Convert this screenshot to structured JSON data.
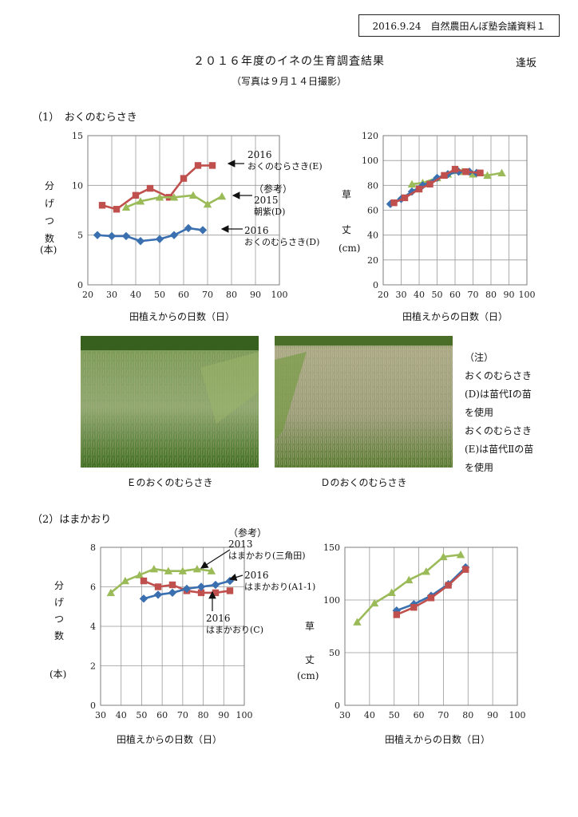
{
  "header": {
    "doc_label": "2016.9.24　自然農田んぼ塾会議資料１"
  },
  "title": "２０１６年度のイネの生育調査結果",
  "author": "逢坂",
  "subtitle": "（写真は９月１４日撮影）",
  "section1": {
    "heading": "（1）　おくのむらさき"
  },
  "section2": {
    "heading": "（2）はまかおり"
  },
  "labels": {
    "tillers_v": [
      "分",
      "げ",
      "つ",
      "数"
    ],
    "tillers_unit": "(本)",
    "height_v": [
      "草",
      "丈"
    ],
    "height_unit": "(cm)",
    "xlabel": "田植えからの日数（日）"
  },
  "colors": {
    "blue": "#3a6fb0",
    "red": "#c0504d",
    "green": "#9bbb59",
    "grid": "#999999"
  },
  "annotations": {
    "c1": {
      "e_year": "2016",
      "e_name": "おくのむらさき(E)",
      "ref": "（参考）",
      "ref_year": "2015",
      "ref_name": "朝紫(D)",
      "d_year": "2016",
      "d_name": "おくのむらさき(D)"
    },
    "c3": {
      "ref": "（参考）",
      "ref_year": "2013",
      "ref_name": "はまかおり(三角田)",
      "a_year": "2016",
      "a_name": "はまかおり(A1-1)",
      "c_year": "2016",
      "c_name": "はまかおり(C)"
    }
  },
  "photos": {
    "left_caption": "Ｅのおくのむらさき",
    "right_caption": "Ｄのおくのむらさき"
  },
  "note": {
    "lines": [
      "（注）",
      "おくのむらさき",
      "(D)は苗代Ⅰの苗",
      "を使用",
      "おくのむらさき",
      "(E)は苗代Ⅱの苗",
      "を使用"
    ]
  },
  "chart_data": [
    {
      "type": "line",
      "xlim": [
        20,
        100
      ],
      "ylim": [
        0,
        15
      ],
      "xticks": [
        20,
        30,
        40,
        50,
        60,
        70,
        80,
        90,
        100
      ],
      "yticks": [
        0,
        5,
        10,
        15
      ],
      "grid": true,
      "series": [
        {
          "name": "2016 おくのむらさき(E)",
          "marker": "square",
          "color": "#c0504d",
          "x": [
            26,
            32,
            40,
            46,
            54,
            60,
            66,
            72
          ],
          "y": [
            8.0,
            7.6,
            9.0,
            9.7,
            8.8,
            10.7,
            12.0,
            12.0
          ]
        },
        {
          "name": "2015 朝紫(D)",
          "marker": "triangle",
          "color": "#9bbb59",
          "x": [
            36,
            42,
            50,
            56,
            64,
            70,
            76
          ],
          "y": [
            7.8,
            8.4,
            8.8,
            8.8,
            9.0,
            8.1,
            8.9
          ]
        },
        {
          "name": "2016 おくのむらさき(D)",
          "marker": "diamond",
          "color": "#3a6fb0",
          "x": [
            24,
            30,
            36,
            42,
            50,
            56,
            62,
            68
          ],
          "y": [
            5.0,
            4.9,
            4.9,
            4.4,
            4.6,
            5.0,
            5.7,
            5.5
          ]
        }
      ]
    },
    {
      "type": "line",
      "xlim": [
        20,
        100
      ],
      "ylim": [
        0,
        120
      ],
      "xticks": [
        20,
        30,
        40,
        50,
        60,
        70,
        80,
        90,
        100
      ],
      "yticks": [
        0,
        20,
        40,
        60,
        80,
        100,
        120
      ],
      "grid": true,
      "series": [
        {
          "name": "2015 朝紫(D)",
          "marker": "triangle",
          "color": "#9bbb59",
          "x": [
            36,
            42,
            50,
            56,
            64,
            70,
            78,
            86
          ],
          "y": [
            81,
            82,
            86,
            89,
            91,
            89,
            88,
            90
          ]
        },
        {
          "name": "2016 おくのむらさき(D)",
          "marker": "diamond",
          "color": "#3a6fb0",
          "x": [
            24,
            30,
            36,
            42,
            50,
            56,
            62,
            68,
            72
          ],
          "y": [
            65,
            69,
            75,
            80,
            86,
            89,
            91,
            91,
            90
          ]
        },
        {
          "name": "2016 おくのむらさき(E)",
          "marker": "square",
          "color": "#c0504d",
          "x": [
            26,
            32,
            40,
            46,
            54,
            60,
            66,
            74
          ],
          "y": [
            66,
            70,
            77,
            81,
            88,
            93,
            91,
            90
          ]
        }
      ]
    },
    {
      "type": "line",
      "xlim": [
        30,
        100
      ],
      "ylim": [
        0,
        8
      ],
      "xticks": [
        30,
        40,
        50,
        60,
        70,
        80,
        90,
        100
      ],
      "yticks": [
        0,
        2,
        4,
        6,
        8
      ],
      "grid": true,
      "series": [
        {
          "name": "2013 はまかおり(三角田)",
          "marker": "triangle",
          "color": "#9bbb59",
          "x": [
            35,
            42,
            49,
            56,
            63,
            70,
            77,
            84
          ],
          "y": [
            5.7,
            6.3,
            6.6,
            6.9,
            6.8,
            6.8,
            6.9,
            6.8
          ]
        },
        {
          "name": "2016 はまかおり(C)",
          "marker": "square",
          "color": "#c0504d",
          "x": [
            51,
            58,
            65,
            72,
            79,
            86,
            93
          ],
          "y": [
            6.3,
            6.0,
            6.1,
            5.8,
            5.7,
            5.7,
            5.8
          ]
        },
        {
          "name": "2016 はまかおり(A1-1)",
          "marker": "diamond",
          "color": "#3a6fb0",
          "x": [
            51,
            58,
            65,
            72,
            79,
            86,
            93
          ],
          "y": [
            5.4,
            5.6,
            5.7,
            5.9,
            6.0,
            6.1,
            6.3
          ]
        }
      ]
    },
    {
      "type": "line",
      "xlim": [
        30,
        100
      ],
      "ylim": [
        0,
        150
      ],
      "xticks": [
        30,
        40,
        50,
        60,
        70,
        80,
        90,
        100
      ],
      "yticks": [
        0,
        50,
        100,
        150
      ],
      "grid": true,
      "series": [
        {
          "name": "2013 はまかおり(三角田)",
          "marker": "triangle",
          "color": "#9bbb59",
          "x": [
            35,
            42,
            49,
            56,
            63,
            70,
            77
          ],
          "y": [
            79,
            97,
            107,
            119,
            127,
            141,
            143
          ]
        },
        {
          "name": "2016 はまかおり(A1-1)",
          "marker": "diamond",
          "color": "#3a6fb0",
          "x": [
            51,
            58,
            65,
            72,
            79
          ],
          "y": [
            90,
            96,
            104,
            115,
            131
          ]
        },
        {
          "name": "2016 はまかおり(C)",
          "marker": "square",
          "color": "#c0504d",
          "x": [
            51,
            58,
            65,
            72,
            79
          ],
          "y": [
            86,
            93,
            102,
            114,
            129
          ]
        }
      ]
    }
  ]
}
